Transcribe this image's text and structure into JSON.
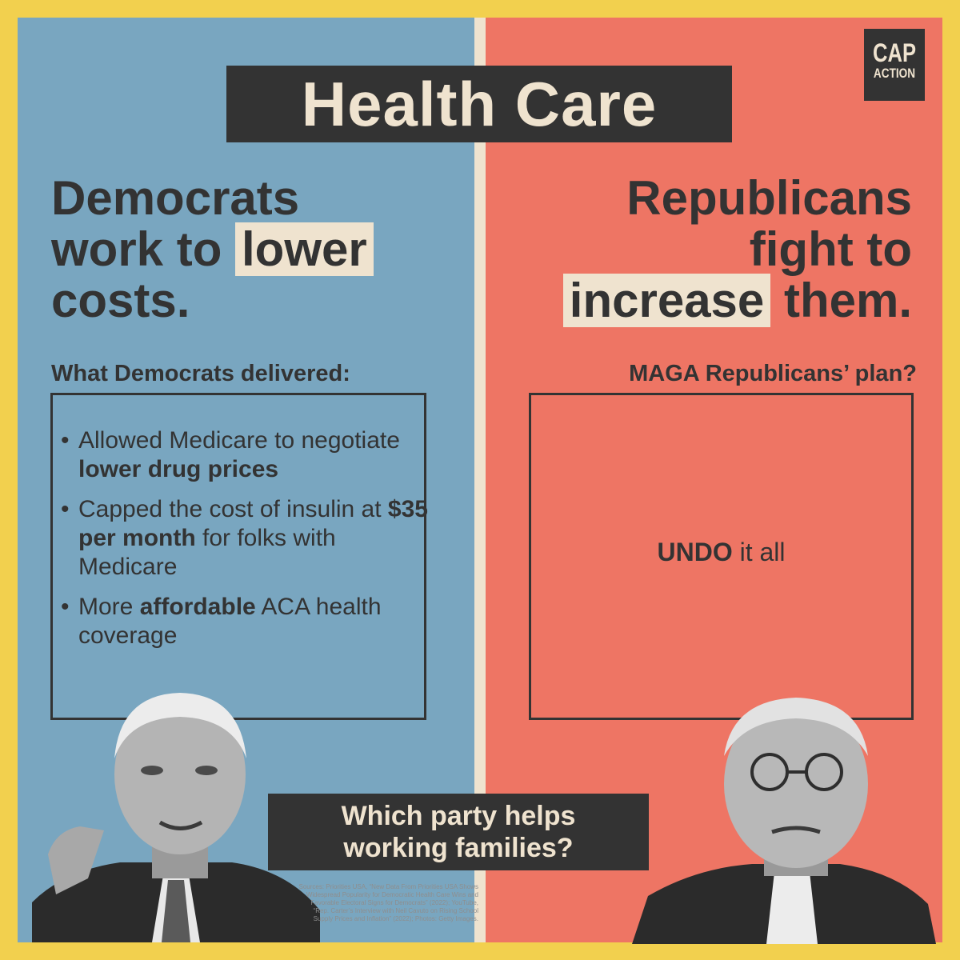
{
  "colors": {
    "frame": "#f2d04e",
    "democrat_panel": "#79a6c0",
    "republican_panel": "#ee7564",
    "dark": "#333333",
    "cream": "#efe3cf"
  },
  "title": "Health Care",
  "logo": {
    "line1": "CAP",
    "line2": "ACTION"
  },
  "democrats": {
    "headline_line1": "Democrats",
    "headline_line2a": "work to ",
    "headline_highlight": "lower",
    "headline_line3": "costs.",
    "subheading": "What Democrats delivered:",
    "bullets": [
      {
        "pre": "Allowed Medicare to negotiate ",
        "bold": "lower drug prices",
        "post": ""
      },
      {
        "pre": "Capped the cost of insulin at ",
        "bold": "$35 per month",
        "post": " for folks with Medicare"
      },
      {
        "pre": "More ",
        "bold": "affordable",
        "post": " ACA health coverage"
      }
    ],
    "photo_icon": "man-portrait-grayscale"
  },
  "republicans": {
    "headline_line1": "Republicans",
    "headline_line2": "fight to",
    "headline_highlight": "increase",
    "headline_line3b": " them.",
    "subheading": "MAGA Republicans’ plan?",
    "plan_bold": "UNDO",
    "plan_rest": " it all",
    "photo_icon": "man-with-glasses-portrait-grayscale"
  },
  "question_line1": "Which party helps",
  "question_line2": "working families?",
  "sources": "Sources: Priorities USA, “New Data From Priorities USA Shows Widespread Popularity for Democratic Health Care Wins and Favorable Electoral Signs for Democrats” (2022); YouTube, “Rep. Carter’s Interview with Neil Cavuto on Rising School Supply Prices and Inflation” (2022); Photos: Getty Images."
}
